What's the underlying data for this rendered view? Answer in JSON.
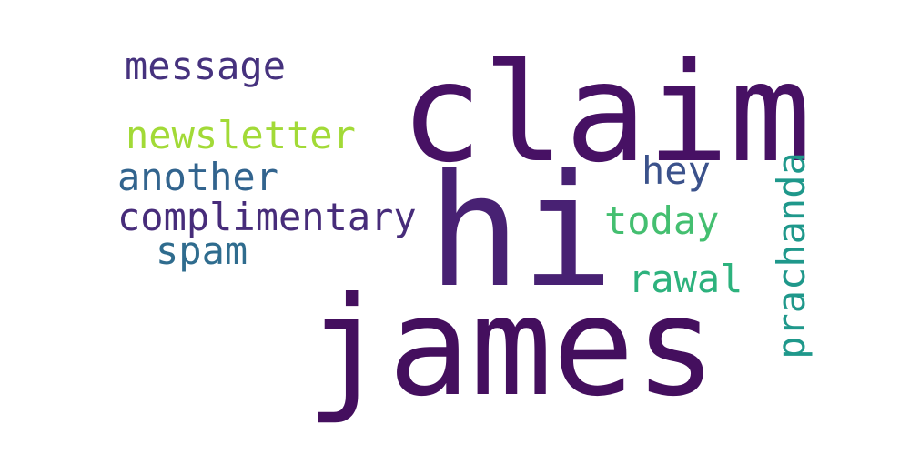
{
  "word_cloud": {
    "words": [
      {
        "text": "claim",
        "color": "#471164"
      },
      {
        "text": "hi",
        "color": "#482173"
      },
      {
        "text": "james",
        "color": "#440f5e"
      },
      {
        "text": "message",
        "color": "#46327e"
      },
      {
        "text": "newsletter",
        "color": "#a2da37"
      },
      {
        "text": "another",
        "color": "#32648e"
      },
      {
        "text": "complimentary",
        "color": "#472c7a"
      },
      {
        "text": "spam",
        "color": "#2f6c8e"
      },
      {
        "text": "hey",
        "color": "#3b528b"
      },
      {
        "text": "today",
        "color": "#44bf70"
      },
      {
        "text": "rawal",
        "color": "#2db27d"
      },
      {
        "text": "prachanda",
        "color": "#1f988b"
      }
    ]
  }
}
